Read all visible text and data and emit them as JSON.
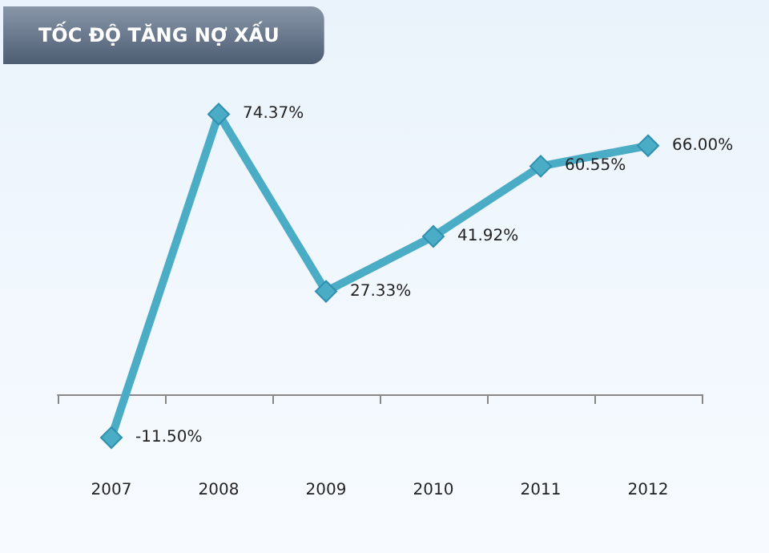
{
  "chart_data": {
    "type": "line",
    "title": "TỐC ĐỘ TĂNG NỢ XẤU",
    "categories": [
      "2007",
      "2008",
      "2009",
      "2010",
      "2011",
      "2012"
    ],
    "series": [
      {
        "color": "#4bacc6",
        "values": [
          -11.5,
          74.37,
          27.33,
          41.92,
          60.55,
          66.0
        ],
        "value_labels": [
          "-11.50%",
          "74.37%",
          "27.33%",
          "41.92%",
          "60.55%",
          "66.00%"
        ]
      }
    ],
    "marker": "diamond"
  }
}
